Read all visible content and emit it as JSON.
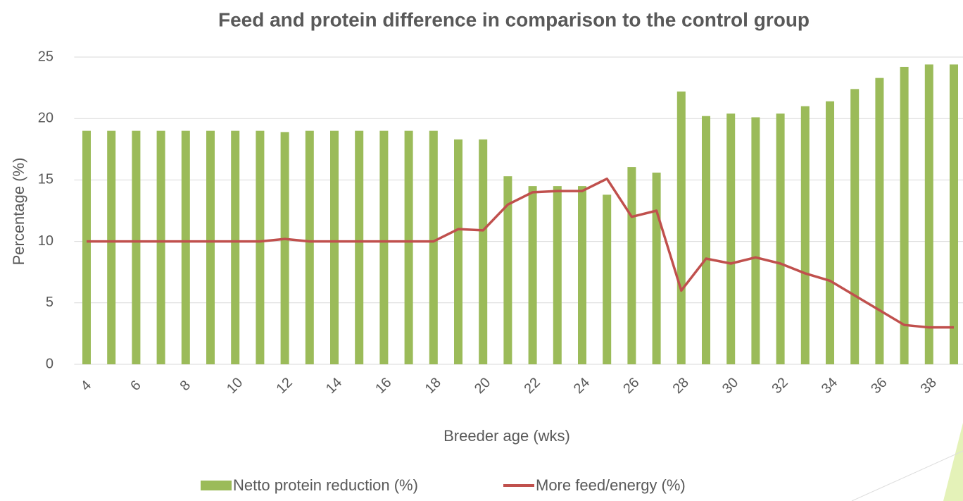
{
  "chart_data": {
    "type": "bar_line",
    "title": "Feed and protein difference in comparison to the control group",
    "xlabel": "Breeder age (wks)",
    "ylabel": "Percentage (%)",
    "categories": [
      4,
      null,
      6,
      null,
      8,
      null,
      10,
      null,
      12,
      null,
      14,
      null,
      16,
      null,
      18,
      null,
      20,
      null,
      22,
      null,
      24,
      null,
      26,
      null,
      28,
      null,
      30,
      null,
      32,
      null,
      34,
      null,
      36,
      null,
      38,
      null
    ],
    "series": [
      {
        "name": "Netto protein reduction (%)",
        "type": "bar",
        "color": "#9bbb59",
        "values": [
          19,
          19,
          19,
          19,
          19,
          19,
          19,
          19,
          18.9,
          19,
          19,
          19,
          19,
          19,
          19,
          18.3,
          18.3,
          15.3,
          14.5,
          14.5,
          14.5,
          13.8,
          16.05,
          15.6,
          22.2,
          20.2,
          20.4,
          20.1,
          20.4,
          21,
          21.4,
          22.4,
          23.3,
          24.2,
          24.4,
          24.4
        ]
      },
      {
        "name": "More feed/energy (%)",
        "type": "line",
        "color": "#c0504d",
        "values": [
          10,
          10,
          10,
          10,
          10,
          10,
          10,
          10,
          10.2,
          10,
          10,
          10,
          10,
          10,
          10,
          11,
          10.9,
          13,
          14,
          14.1,
          14.1,
          15.1,
          12,
          12.5,
          6,
          8.6,
          8.2,
          8.7,
          8.2,
          7.4,
          6.8,
          5.6,
          4.4,
          3.2,
          3,
          3
        ]
      }
    ],
    "ylim": [
      0,
      25
    ],
    "yticks": [
      0,
      5,
      10,
      15,
      20,
      25
    ],
    "grid": true
  }
}
